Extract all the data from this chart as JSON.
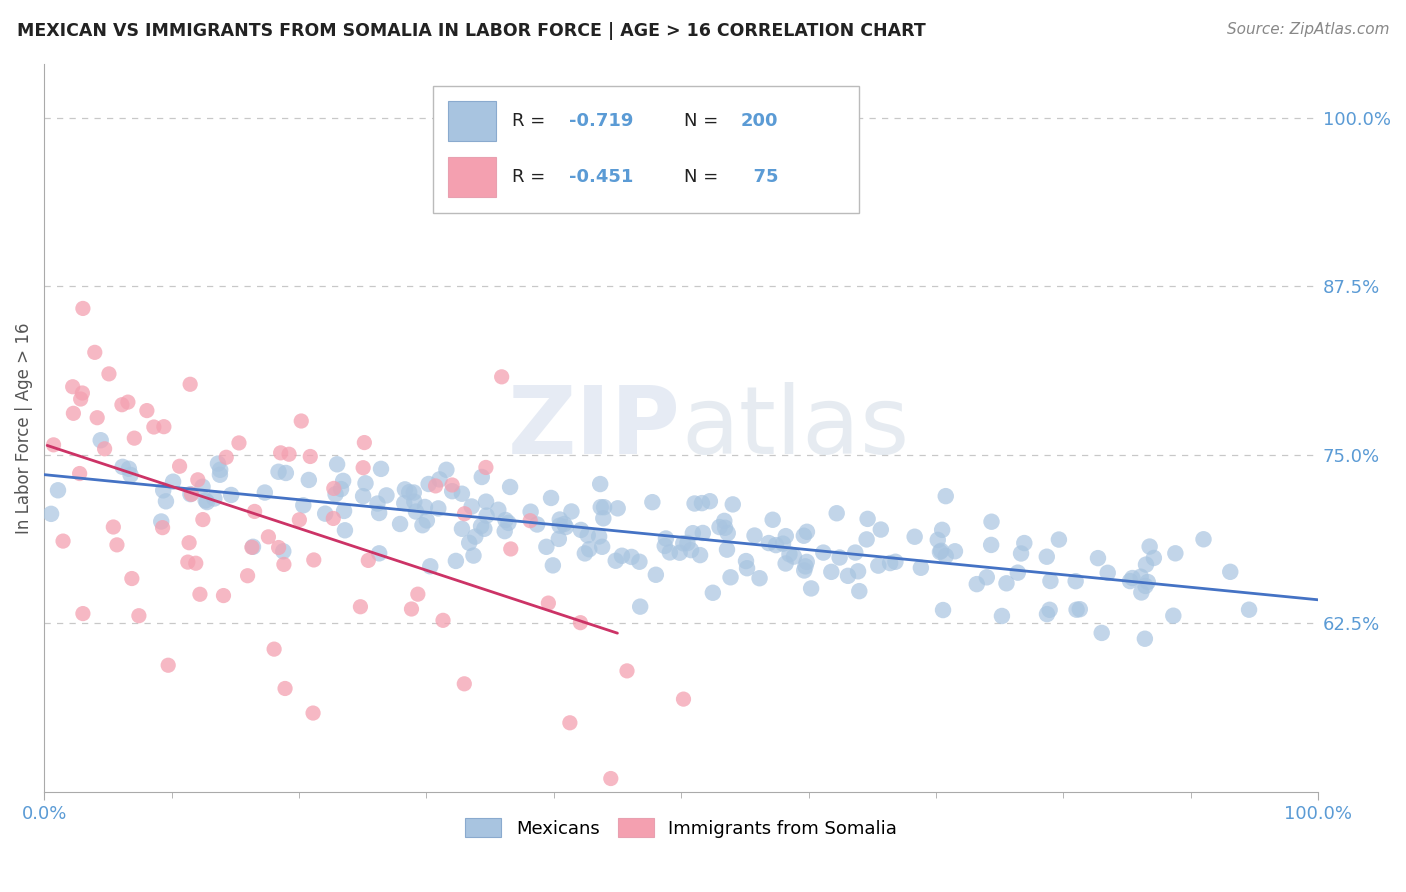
{
  "title": "MEXICAN VS IMMIGRANTS FROM SOMALIA IN LABOR FORCE | AGE > 16 CORRELATION CHART",
  "source_text": "Source: ZipAtlas.com",
  "ylabel": "In Labor Force | Age > 16",
  "xlim": [
    0.0,
    1.0
  ],
  "ylim": [
    0.5,
    1.04
  ],
  "yticks": [
    0.625,
    0.75,
    0.875,
    1.0
  ],
  "ytick_labels": [
    "62.5%",
    "75.0%",
    "87.5%",
    "100.0%"
  ],
  "xtick_labels": [
    "0.0%",
    "100.0%"
  ],
  "mexicans_color": "#a8c4e0",
  "somalia_color": "#f4a0b0",
  "regression_mexican_color": "#4472c4",
  "regression_somalia_color": "#cc3366",
  "watermark_zip": "ZIP",
  "watermark_atlas": "atlas",
  "grid_color": "#c8c8c8",
  "title_color": "#222222",
  "tick_label_color": "#5b9bd5",
  "legend_text_color": "#222222",
  "legend_value_color": "#5b9bd5",
  "background_color": "#ffffff",
  "source_color": "#888888"
}
